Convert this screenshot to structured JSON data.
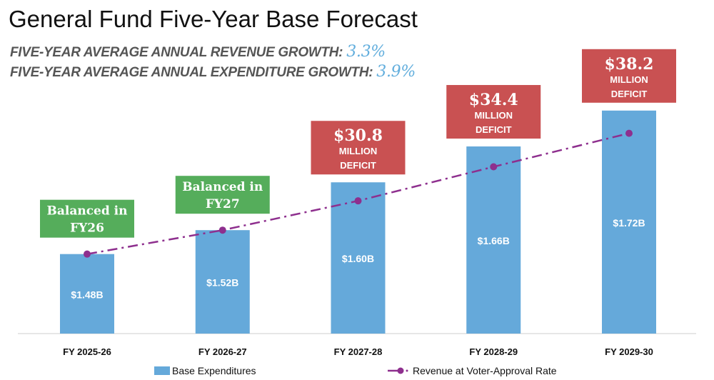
{
  "title": "General Fund Five-Year Base Forecast",
  "subtitles": [
    {
      "label": "FIVE-YEAR AVERAGE ANNUAL REVENUE GROWTH:",
      "value": "3.3%"
    },
    {
      "label": "FIVE-YEAR AVERAGE ANNUAL EXPENDITURE GROWTH:",
      "value": "3.9%"
    }
  ],
  "colors": {
    "bar": "#65a9da",
    "line": "#8e2f8e",
    "balanced": "#55ad5b",
    "deficit": "#c95152"
  },
  "chart_data": {
    "type": "bar",
    "categories": [
      "FY 2025-26",
      "FY 2026-27",
      "FY 2027-28",
      "FY 2028-29",
      "FY 2029-30"
    ],
    "series": [
      {
        "name": "Base Expenditures",
        "type": "bar",
        "values": [
          1.48,
          1.52,
          1.6,
          1.66,
          1.72
        ],
        "labels": [
          "$1.48B",
          "$1.52B",
          "$1.60B",
          "$1.66B",
          "$1.72B"
        ]
      },
      {
        "name": "Revenue at Voter-Approval Rate",
        "type": "line",
        "values": [
          1.48,
          1.52,
          1.569,
          1.626,
          1.682
        ]
      }
    ],
    "annotations": [
      {
        "type": "balanced",
        "lines": [
          "Balanced in",
          "FY26"
        ]
      },
      {
        "type": "balanced",
        "lines": [
          "Balanced in",
          "FY27"
        ]
      },
      {
        "type": "deficit",
        "lines": [
          "$30.8",
          "MILLION",
          "DEFICIT"
        ]
      },
      {
        "type": "deficit",
        "lines": [
          "$34.4",
          "MILLION",
          "DEFICIT"
        ]
      },
      {
        "type": "deficit",
        "lines": [
          "$38.2",
          "MILLION",
          "DEFICIT"
        ]
      }
    ],
    "legend": "bottom",
    "grid": false
  }
}
